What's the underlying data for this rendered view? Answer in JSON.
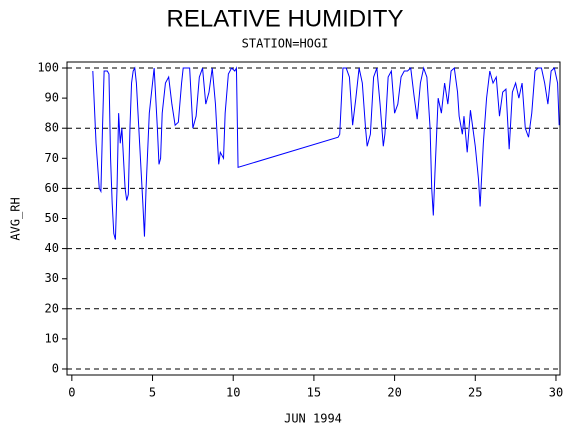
{
  "chart_data": {
    "type": "line",
    "title": "RELATIVE HUMIDITY",
    "subtitle": "STATION=HOGI",
    "xlabel": "JUN 1994",
    "ylabel": "AVG_RH",
    "xlim": [
      -0.3,
      30.25
    ],
    "ylim": [
      -2,
      102
    ],
    "xticks": [
      0,
      5,
      10,
      15,
      20,
      25,
      30
    ],
    "yticks": [
      0,
      10,
      20,
      30,
      40,
      50,
      60,
      70,
      80,
      90,
      100
    ],
    "grid_values": [
      0,
      20,
      40,
      60,
      80,
      100
    ],
    "series": [
      {
        "color": "#0000ff",
        "x": [
          1.3,
          1.5,
          1.7,
          1.8,
          1.9,
          2.0,
          2.2,
          2.3,
          2.4,
          2.5,
          2.6,
          2.7,
          2.8,
          2.9,
          3.0,
          3.1,
          3.2,
          3.3,
          3.4,
          3.5,
          3.6,
          3.7,
          3.8,
          3.9,
          4.0,
          4.2,
          4.4,
          4.5,
          4.6,
          4.8,
          5.0,
          5.1,
          5.3,
          5.4,
          5.5,
          5.6,
          5.8,
          6.0,
          6.2,
          6.4,
          6.6,
          6.8,
          6.9,
          7.1,
          7.3,
          7.4,
          7.5,
          7.7,
          7.9,
          8.1,
          8.3,
          8.5,
          8.7,
          8.9,
          9.0,
          9.1,
          9.2,
          9.4,
          9.5,
          9.7,
          9.9,
          10.1,
          10.2,
          10.3,
          16.5,
          16.6,
          16.8,
          17.0,
          17.2,
          17.4,
          17.6,
          17.8,
          18.0,
          18.2,
          18.3,
          18.5,
          18.7,
          18.9,
          19.1,
          19.3,
          19.4,
          19.6,
          19.8,
          20.0,
          20.2,
          20.4,
          20.6,
          20.8,
          21.0,
          21.2,
          21.4,
          21.6,
          21.8,
          22.0,
          22.2,
          22.3,
          22.4,
          22.5,
          22.7,
          22.9,
          23.1,
          23.3,
          23.5,
          23.7,
          23.9,
          24.0,
          24.2,
          24.3,
          24.5,
          24.7,
          24.9,
          25.0,
          25.2,
          25.3,
          25.5,
          25.7,
          25.9,
          26.1,
          26.3,
          26.5,
          26.7,
          26.9,
          27.1,
          27.3,
          27.5,
          27.7,
          27.9,
          28.1,
          28.3,
          28.5,
          28.7,
          28.9,
          29.1,
          29.3,
          29.5,
          29.7,
          29.9,
          30.1,
          30.2
        ],
        "values": [
          99,
          75,
          60,
          59,
          80,
          99,
          99,
          98,
          70,
          55,
          45,
          43,
          60,
          85,
          75,
          80,
          70,
          60,
          56,
          58,
          80,
          95,
          99,
          100,
          95,
          75,
          55,
          44,
          60,
          85,
          95,
          100,
          80,
          68,
          70,
          85,
          95,
          97,
          88,
          81,
          82,
          95,
          100,
          100,
          100,
          90,
          80,
          84,
          97,
          100,
          88,
          92,
          100,
          88,
          78,
          68,
          72,
          70,
          85,
          98,
          100,
          99,
          100,
          67,
          77,
          78,
          100,
          100,
          97,
          81,
          90,
          100,
          95,
          80,
          74,
          78,
          97,
          100,
          88,
          74,
          78,
          97,
          99,
          85,
          88,
          97,
          99,
          99,
          100,
          91,
          83,
          95,
          100,
          97,
          80,
          60,
          51,
          65,
          90,
          85,
          95,
          88,
          99,
          100,
          92,
          84,
          78,
          84,
          72,
          86,
          78,
          74,
          63,
          54,
          75,
          90,
          99,
          95,
          97,
          84,
          92,
          93,
          73,
          92,
          95,
          90,
          95,
          80,
          77,
          85,
          99,
          100,
          100,
          95,
          88,
          99,
          100,
          95,
          81
        ]
      }
    ]
  }
}
